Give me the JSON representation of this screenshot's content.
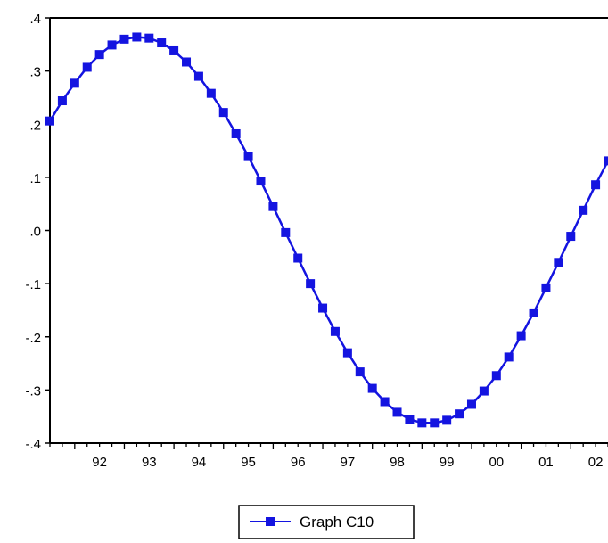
{
  "colors": {
    "series": "#1414e0",
    "axis": "#000000",
    "background": "#ffffff"
  },
  "chart_data": {
    "type": "line",
    "title": "",
    "xlabel": "",
    "ylabel": "",
    "grid": false,
    "legend_position": "bottom-center",
    "ylim": [
      -0.4,
      0.4
    ],
    "y_ticks": [
      {
        "value": 0.4,
        "label": ".4"
      },
      {
        "value": 0.3,
        "label": ".3"
      },
      {
        "value": 0.2,
        "label": ".2"
      },
      {
        "value": 0.1,
        "label": ".1"
      },
      {
        "value": 0.0,
        "label": ".0"
      },
      {
        "value": -0.1,
        "label": "-.1"
      },
      {
        "value": -0.2,
        "label": "-.2"
      },
      {
        "value": -0.3,
        "label": "-.3"
      },
      {
        "value": -0.4,
        "label": "-.4"
      }
    ],
    "xlim": [
      1991.5,
      2002.75
    ],
    "x_ticks": [
      {
        "value": 1992,
        "label": "92"
      },
      {
        "value": 1993,
        "label": "93"
      },
      {
        "value": 1994,
        "label": "94"
      },
      {
        "value": 1995,
        "label": "95"
      },
      {
        "value": 1996,
        "label": "96"
      },
      {
        "value": 1997,
        "label": "97"
      },
      {
        "value": 1998,
        "label": "98"
      },
      {
        "value": 1999,
        "label": "99"
      },
      {
        "value": 2000,
        "label": "00"
      },
      {
        "value": 2001,
        "label": "01"
      },
      {
        "value": 2002,
        "label": "02"
      }
    ],
    "series": [
      {
        "name": "Graph C10",
        "x": [
          1991.5,
          1991.75,
          1992.0,
          1992.25,
          1992.5,
          1992.75,
          1993.0,
          1993.25,
          1993.5,
          1993.75,
          1994.0,
          1994.25,
          1994.5,
          1994.75,
          1995.0,
          1995.25,
          1995.5,
          1995.75,
          1996.0,
          1996.25,
          1996.5,
          1996.75,
          1997.0,
          1997.25,
          1997.5,
          1997.75,
          1998.0,
          1998.25,
          1998.5,
          1998.75,
          1999.0,
          1999.25,
          1999.5,
          1999.75,
          2000.0,
          2000.25,
          2000.5,
          2000.75,
          2001.0,
          2001.25,
          2001.5,
          2001.75,
          2002.0,
          2002.25,
          2002.5,
          2002.75
        ],
        "values": [
          0.206,
          0.244,
          0.277,
          0.307,
          0.331,
          0.349,
          0.36,
          0.364,
          0.362,
          0.353,
          0.338,
          0.317,
          0.29,
          0.258,
          0.222,
          0.182,
          0.139,
          0.093,
          0.045,
          -0.004,
          -0.052,
          -0.1,
          -0.146,
          -0.19,
          -0.23,
          -0.266,
          -0.297,
          -0.322,
          -0.342,
          -0.355,
          -0.362,
          -0.362,
          -0.357,
          -0.345,
          -0.327,
          -0.302,
          -0.273,
          -0.238,
          -0.198,
          -0.155,
          -0.108,
          -0.06,
          -0.011,
          0.038,
          0.086,
          0.131
        ]
      }
    ]
  }
}
